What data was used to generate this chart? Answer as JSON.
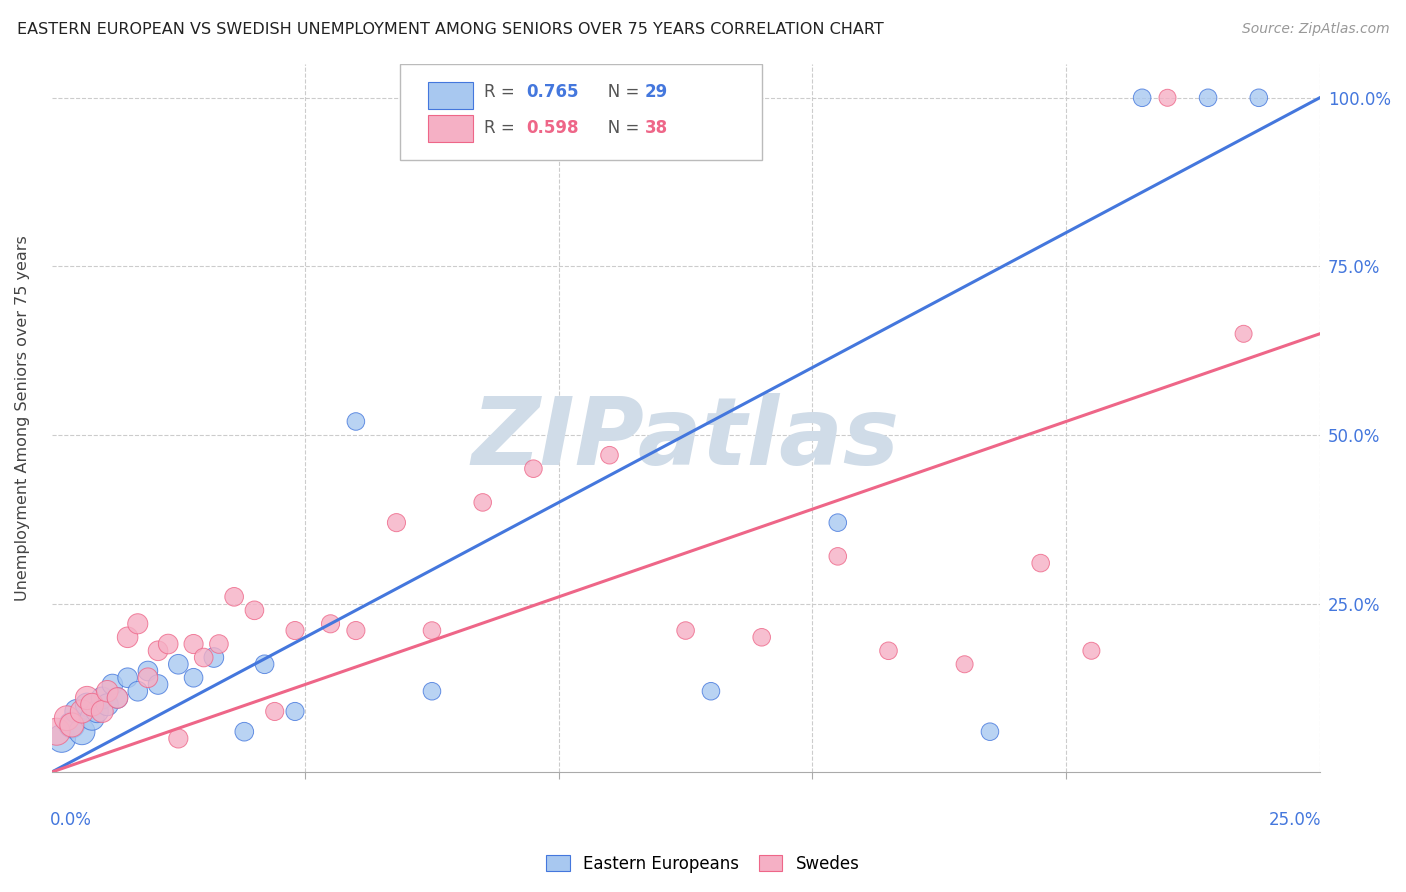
{
  "title": "EASTERN EUROPEAN VS SWEDISH UNEMPLOYMENT AMONG SENIORS OVER 75 YEARS CORRELATION CHART",
  "source": "Source: ZipAtlas.com",
  "ylabel": "Unemployment Among Seniors over 75 years",
  "legend_label_blue": "Eastern Europeans",
  "legend_label_pink": "Swedes",
  "blue_color": "#A8C8F0",
  "pink_color": "#F5B0C5",
  "blue_line_color": "#4477DD",
  "pink_line_color": "#EE6688",
  "blue_r": "0.765",
  "blue_n": "29",
  "pink_r": "0.598",
  "pink_n": "38",
  "xmin": 0.0,
  "xmax": 0.25,
  "ymin": 0.0,
  "ymax": 1.05,
  "blue_scatter_x": [
    0.002,
    0.004,
    0.005,
    0.006,
    0.007,
    0.008,
    0.009,
    0.01,
    0.011,
    0.012,
    0.013,
    0.015,
    0.017,
    0.019,
    0.021,
    0.025,
    0.028,
    0.032,
    0.038,
    0.042,
    0.048,
    0.06,
    0.075,
    0.13,
    0.155,
    0.185,
    0.215,
    0.228,
    0.238
  ],
  "blue_scatter_y": [
    0.05,
    0.07,
    0.09,
    0.06,
    0.1,
    0.08,
    0.09,
    0.11,
    0.1,
    0.13,
    0.11,
    0.14,
    0.12,
    0.15,
    0.13,
    0.16,
    0.14,
    0.17,
    0.06,
    0.16,
    0.09,
    0.52,
    0.12,
    0.12,
    0.37,
    0.06,
    1.0,
    1.0,
    1.0
  ],
  "blue_scatter_size": [
    400,
    350,
    300,
    350,
    280,
    300,
    260,
    250,
    250,
    220,
    220,
    200,
    200,
    200,
    200,
    200,
    180,
    200,
    180,
    180,
    170,
    160,
    160,
    160,
    160,
    160,
    160,
    160,
    160
  ],
  "pink_scatter_x": [
    0.001,
    0.003,
    0.004,
    0.006,
    0.007,
    0.008,
    0.01,
    0.011,
    0.013,
    0.015,
    0.017,
    0.019,
    0.021,
    0.023,
    0.025,
    0.028,
    0.03,
    0.033,
    0.036,
    0.04,
    0.044,
    0.048,
    0.055,
    0.06,
    0.068,
    0.075,
    0.085,
    0.095,
    0.11,
    0.125,
    0.14,
    0.155,
    0.165,
    0.18,
    0.195,
    0.205,
    0.22,
    0.235
  ],
  "pink_scatter_y": [
    0.06,
    0.08,
    0.07,
    0.09,
    0.11,
    0.1,
    0.09,
    0.12,
    0.11,
    0.2,
    0.22,
    0.14,
    0.18,
    0.19,
    0.05,
    0.19,
    0.17,
    0.19,
    0.26,
    0.24,
    0.09,
    0.21,
    0.22,
    0.21,
    0.37,
    0.21,
    0.4,
    0.45,
    0.47,
    0.21,
    0.2,
    0.32,
    0.18,
    0.16,
    0.31,
    0.18,
    1.0,
    0.65
  ],
  "pink_scatter_size": [
    380,
    320,
    300,
    280,
    280,
    270,
    250,
    240,
    220,
    220,
    210,
    200,
    200,
    200,
    190,
    190,
    180,
    180,
    180,
    180,
    170,
    170,
    170,
    170,
    170,
    160,
    160,
    160,
    160,
    160,
    160,
    160,
    160,
    150,
    160,
    150,
    150,
    150
  ],
  "blue_line_x": [
    0.0,
    0.25
  ],
  "blue_line_y": [
    0.0,
    1.0
  ],
  "pink_line_x": [
    0.0,
    0.25
  ],
  "pink_line_y": [
    0.0,
    0.65
  ],
  "background_color": "#FFFFFF",
  "grid_color": "#CCCCCC",
  "watermark_text": "ZIPatlas",
  "watermark_color": "#D0DCE8"
}
